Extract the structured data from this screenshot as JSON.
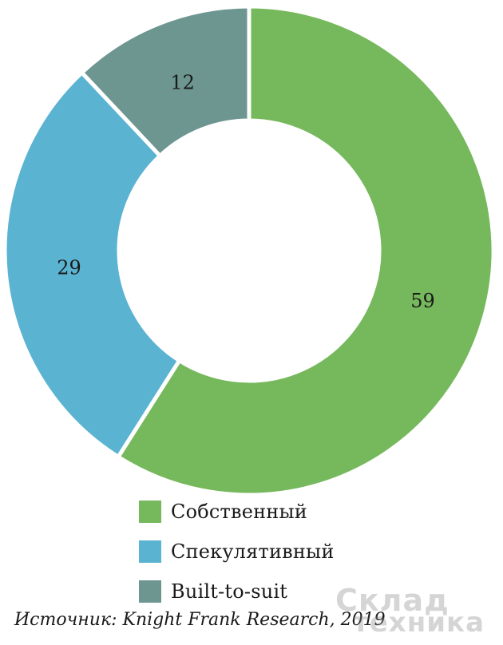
{
  "chart_data": {
    "type": "pie",
    "donut": true,
    "categories": [
      "Собственный",
      "Спекулятивный",
      "Built-to-suit"
    ],
    "values": [
      59,
      29,
      12
    ],
    "data_labels": [
      "59",
      "29",
      "12"
    ],
    "colors": [
      "#76b85c",
      "#5bb3d2",
      "#6e9691"
    ],
    "title": "",
    "legend_position": "bottom",
    "start": "top",
    "direction": "clockwise"
  },
  "source": "Источник: Knight Frank Research, 2019",
  "watermark": {
    "line1": "Склад",
    "line2": "техника"
  }
}
